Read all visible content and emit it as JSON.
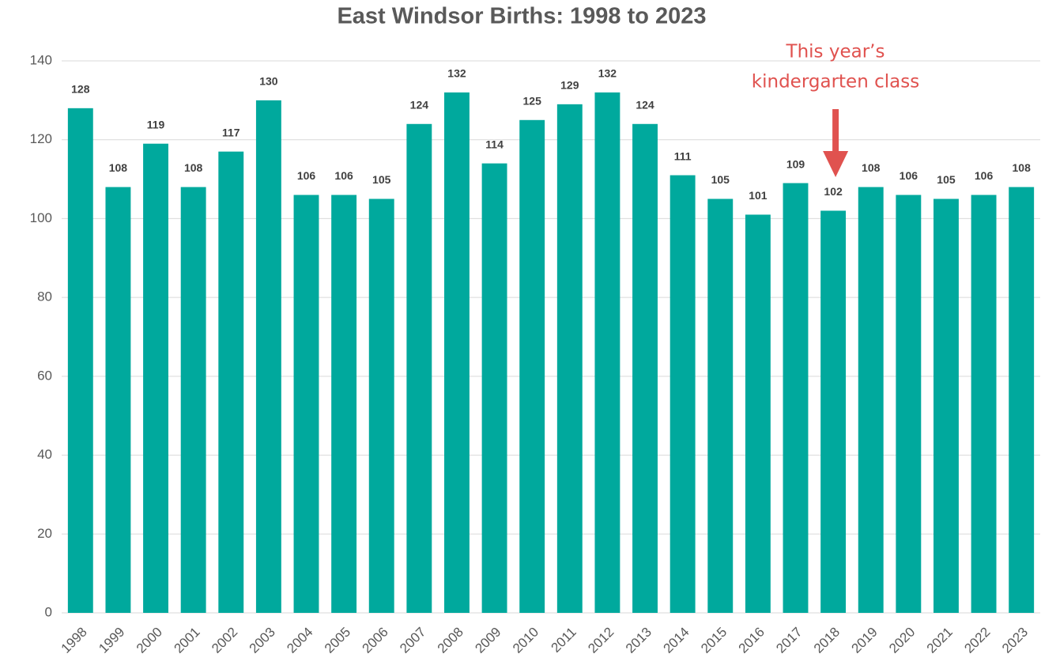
{
  "chart_data": {
    "type": "bar",
    "title": "East Windsor Births: 1998 to 2023",
    "categories": [
      "1998",
      "1999",
      "2000",
      "2001",
      "2002",
      "2003",
      "2004",
      "2005",
      "2006",
      "2007",
      "2008",
      "2009",
      "2010",
      "2011",
      "2012",
      "2013",
      "2014",
      "2015",
      "2016",
      "2017",
      "2018",
      "2019",
      "2020",
      "2021",
      "2022",
      "2023"
    ],
    "values": [
      128,
      108,
      119,
      108,
      117,
      130,
      106,
      106,
      105,
      124,
      132,
      114,
      125,
      129,
      132,
      124,
      111,
      105,
      101,
      109,
      102,
      108,
      106,
      105,
      106,
      108
    ],
    "color": "#00a99d",
    "ylim": [
      0,
      140
    ],
    "yticks": [
      0,
      20,
      40,
      60,
      80,
      100,
      120,
      140
    ],
    "grid": true,
    "annotation": [
      "This year’s",
      "kindergarten class"
    ]
  }
}
